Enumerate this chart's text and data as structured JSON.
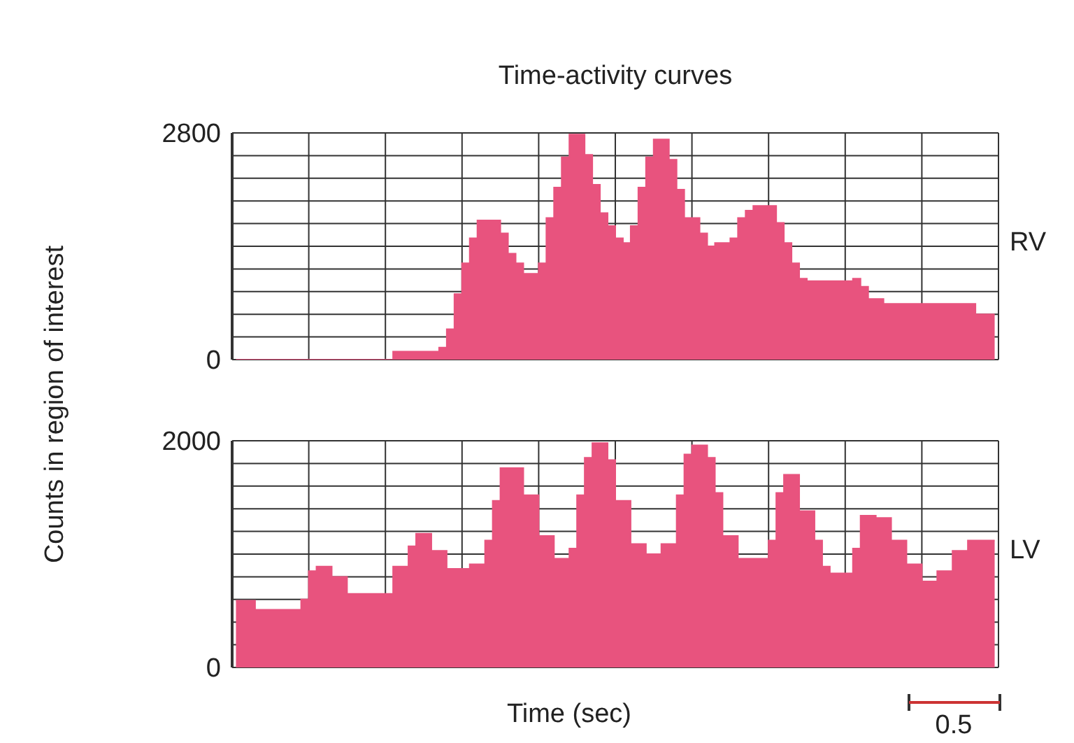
{
  "chart_data": [
    {
      "type": "area",
      "title": "Time-activity curves",
      "ylabel": "Counts in region of interest",
      "categories": [
        null,
        null,
        null,
        null,
        null,
        null,
        null,
        null,
        null,
        null,
        null,
        null,
        null,
        null,
        null,
        null,
        null,
        null,
        null,
        null,
        null,
        null,
        null,
        null,
        null,
        null,
        null,
        null,
        null,
        null,
        null,
        null,
        null,
        null,
        null,
        null,
        null,
        null,
        null,
        null,
        null,
        null,
        null,
        null,
        null,
        null,
        null,
        null,
        null,
        null,
        null,
        null,
        null,
        null,
        null,
        null,
        null,
        null,
        null,
        null,
        null,
        null,
        null,
        null,
        null,
        null,
        null,
        null,
        null,
        null,
        null,
        null,
        null,
        null,
        null,
        null,
        null,
        null,
        null,
        null,
        null,
        null,
        null,
        null,
        null,
        null,
        null,
        null,
        null,
        null,
        null,
        null,
        null,
        null,
        null,
        null,
        null,
        null,
        null,
        null
      ],
      "series": [
        {
          "name": "RV",
          "color": "#e8537e",
          "values": [
            0,
            0,
            0,
            0,
            0,
            0,
            0,
            0,
            0,
            0,
            0,
            0,
            0,
            0,
            0,
            0,
            0,
            0,
            0,
            0,
            0,
            100,
            100,
            100,
            100,
            100,
            100,
            150,
            375,
            810,
            1190,
            1500,
            1720,
            1720,
            1720,
            1560,
            1310,
            1190,
            1060,
            1060,
            1190,
            1750,
            2125,
            2500,
            2780,
            2780,
            2530,
            2160,
            1810,
            1650,
            1500,
            1440,
            1650,
            2125,
            2500,
            2720,
            2720,
            2470,
            2100,
            1750,
            1750,
            1560,
            1400,
            1440,
            1440,
            1500,
            1750,
            1840,
            1900,
            1900,
            1900,
            1690,
            1440,
            1190,
            1000,
            970,
            970,
            970,
            970,
            970,
            970,
            1000,
            900,
            750,
            750,
            690,
            690,
            690,
            690,
            690,
            690,
            690,
            690,
            690,
            690,
            690,
            690,
            560,
            560,
            560
          ]
        }
      ],
      "ylim": [
        0,
        2800
      ],
      "yticks": [
        0,
        {
          "value": 280,
          "label": null
        },
        {
          "value": 560,
          "label": null
        },
        {
          "value": 840,
          "label": null
        },
        {
          "value": 1120,
          "label": null
        },
        {
          "value": 1400,
          "label": null
        },
        {
          "value": 1680,
          "label": null
        },
        {
          "value": 1960,
          "label": null
        },
        {
          "value": 2240,
          "label": null
        },
        {
          "value": 2520,
          "label": null
        },
        2800
      ],
      "grid": true,
      "tick_labels": "y"
    },
    {
      "type": "area",
      "xlabel": "Time (sec)",
      "annotations": [
        "0.5"
      ],
      "categories": [
        null,
        null,
        null,
        null,
        null,
        null,
        null,
        null,
        null,
        null,
        null,
        null,
        null,
        null,
        null,
        null,
        null,
        null,
        null,
        null,
        null,
        null,
        null,
        null,
        null,
        null,
        null,
        null,
        null,
        null,
        null,
        null,
        null,
        null,
        null,
        null,
        null,
        null,
        null,
        null,
        null,
        null,
        null,
        null,
        null,
        null,
        null,
        null,
        null,
        null,
        null,
        null,
        null,
        null,
        null,
        null,
        null,
        null,
        null,
        null,
        null,
        null,
        null,
        null,
        null,
        null,
        null,
        null,
        null,
        null,
        null,
        null,
        null,
        null,
        null,
        null,
        null,
        null,
        null,
        null,
        null,
        null,
        null,
        null,
        null,
        null,
        null,
        null,
        null,
        null,
        null,
        null,
        null,
        null,
        null,
        null,
        null,
        null,
        null,
        null
      ],
      "series": [
        {
          "name": "LV",
          "color": "#e8537e",
          "values": [
            590,
            590,
            590,
            510,
            510,
            510,
            510,
            510,
            510,
            600,
            850,
            890,
            890,
            800,
            800,
            650,
            650,
            650,
            650,
            650,
            650,
            890,
            890,
            1070,
            1180,
            1180,
            1030,
            1030,
            870,
            870,
            870,
            910,
            910,
            1120,
            1470,
            1760,
            1760,
            1760,
            1520,
            1520,
            1160,
            1160,
            960,
            960,
            1050,
            1520,
            1850,
            1980,
            1980,
            1830,
            1470,
            1470,
            1090,
            1090,
            1000,
            1000,
            1090,
            1090,
            1520,
            1880,
            1960,
            1960,
            1850,
            1540,
            1160,
            1160,
            960,
            960,
            960,
            960,
            1120,
            1540,
            1700,
            1700,
            1380,
            1380,
            1120,
            890,
            830,
            830,
            830,
            1050,
            1340,
            1340,
            1320,
            1320,
            1120,
            1120,
            910,
            910,
            760,
            760,
            850,
            850,
            1030,
            1030,
            1120,
            1120,
            1120,
            1120
          ]
        }
      ],
      "ylim": [
        0,
        2000
      ],
      "yticks": [
        0,
        {
          "value": 200,
          "label": null
        },
        {
          "value": 400,
          "label": null
        },
        {
          "value": 600,
          "label": null
        },
        {
          "value": 800,
          "label": null
        },
        {
          "value": 1000,
          "label": null
        },
        {
          "value": 1200,
          "label": null
        },
        {
          "value": 1400,
          "label": null
        },
        {
          "value": 1600,
          "label": null
        },
        {
          "value": 1800,
          "label": null
        },
        2000
      ],
      "grid": true,
      "tick_labels": "y"
    }
  ]
}
